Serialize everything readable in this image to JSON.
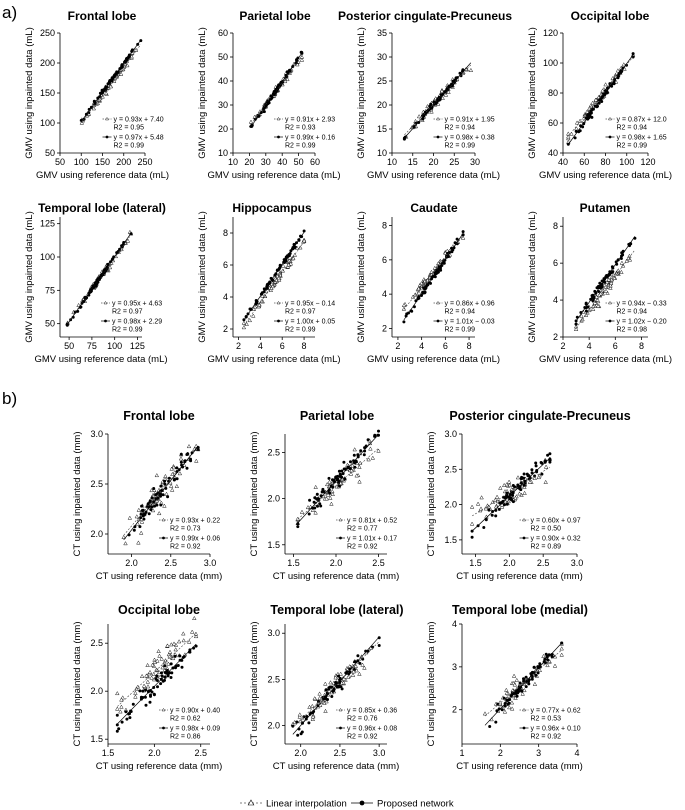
{
  "panel_labels": {
    "a": "a)",
    "b": "b)"
  },
  "legend": {
    "linear": "Linear interpolation",
    "proposed": "Proposed network"
  },
  "chart_data": [
    {
      "type": "scatter",
      "title": "Frontal lobe",
      "xlabel": "GMV using reference data (mL)",
      "ylabel": "GMV using inpainted data (mL)",
      "xlim": [
        50,
        250
      ],
      "ylim": [
        50,
        250
      ],
      "xticks": [
        "50",
        "100",
        "150",
        "200",
        "250"
      ],
      "yticks": [
        "50",
        "100",
        "150",
        "200",
        "250"
      ],
      "range": [
        100,
        240
      ],
      "fit_linear": {
        "slope": 0.93,
        "intercept": 7.4
      },
      "fit_proposed": {
        "slope": 0.97,
        "intercept": 5.48
      },
      "eq_linear": "y = 0.93x + 7.40",
      "r2_linear": "R2 = 0.95",
      "eq_proposed": "y = 0.97x + 5.48",
      "r2_proposed": "R2 = 0.99",
      "spread": 0.03
    },
    {
      "type": "scatter",
      "title": "Parietal lobe",
      "xlabel": "GMV using reference data (mL)",
      "ylabel": "GMV using inpainted data (mL)",
      "xlim": [
        10,
        60
      ],
      "ylim": [
        10,
        60
      ],
      "xticks": [
        "10",
        "20",
        "30",
        "40",
        "50",
        "60"
      ],
      "yticks": [
        "10",
        "20",
        "30",
        "40",
        "50",
        "60"
      ],
      "range": [
        21,
        52
      ],
      "fit_linear": {
        "slope": 0.91,
        "intercept": 2.93
      },
      "fit_proposed": {
        "slope": 0.99,
        "intercept": 0.16
      },
      "eq_linear": "y = 0.91x + 2.93",
      "r2_linear": "R2 = 0.93",
      "eq_proposed": "y = 0.99x + 0.16",
      "r2_proposed": "R2 = 0.99",
      "spread": 0.035
    },
    {
      "type": "scatter",
      "title": "Posterior cingulate-Precuneus",
      "xlabel": "GMV using reference data (mL)",
      "ylabel": "GMV using inpainted data (mL)",
      "xlim": [
        10,
        30
      ],
      "ylim": [
        10,
        35
      ],
      "xticks": [
        "10",
        "15",
        "20",
        "25",
        "30"
      ],
      "yticks": [
        "10",
        "15",
        "20",
        "25",
        "30",
        "35"
      ],
      "range": [
        13,
        29
      ],
      "fit_linear": {
        "slope": 0.91,
        "intercept": 1.95
      },
      "fit_proposed": {
        "slope": 0.98,
        "intercept": 0.38
      },
      "eq_linear": "y = 0.91x + 1.95",
      "r2_linear": "R2 = 0.94",
      "eq_proposed": "y = 0.98x + 0.38",
      "r2_proposed": "R2 = 0.99",
      "spread": 0.035
    },
    {
      "type": "scatter",
      "title": "Occipital lobe",
      "xlabel": "GMV using reference data (mL)",
      "ylabel": "GMV using inpainted data (mL)",
      "xlim": [
        40,
        120
      ],
      "ylim": [
        40,
        120
      ],
      "xticks": [
        "40",
        "60",
        "80",
        "100",
        "120"
      ],
      "yticks": [
        "40",
        "60",
        "80",
        "100",
        "120"
      ],
      "range": [
        45,
        106
      ],
      "fit_linear": {
        "slope": 0.87,
        "intercept": 12.0
      },
      "fit_proposed": {
        "slope": 0.98,
        "intercept": 1.65
      },
      "eq_linear": "y = 0.87x + 12.0",
      "r2_linear": "R2 = 0.94",
      "eq_proposed": "y = 0.98x + 1.65",
      "r2_proposed": "R2 = 0.99",
      "spread": 0.035
    },
    {
      "type": "scatter",
      "title": "Temporal lobe (lateral)",
      "xlabel": "GMV using reference data (mL)",
      "ylabel": "GMV using inpainted data (mL)",
      "xlim": [
        40,
        130
      ],
      "ylim": [
        40,
        130
      ],
      "xticks": [
        "50",
        "75",
        "100",
        "125"
      ],
      "yticks": [
        "50",
        "75",
        "100",
        "125"
      ],
      "range": [
        48,
        118
      ],
      "fit_linear": {
        "slope": 0.95,
        "intercept": 4.63
      },
      "fit_proposed": {
        "slope": 0.98,
        "intercept": 2.29
      },
      "eq_linear": "y = 0.95x + 4.63",
      "r2_linear": "R2 = 0.97",
      "eq_proposed": "y = 0.98x + 2.29",
      "r2_proposed": "R2 = 0.99",
      "spread": 0.03
    },
    {
      "type": "scatter",
      "title": "Hippocampus",
      "xlabel": "GMV using reference data (mL)",
      "ylabel": "GMV using inpainted data (mL)",
      "xlim": [
        1.5,
        9
      ],
      "ylim": [
        1.5,
        9
      ],
      "xticks": [
        "2",
        "4",
        "6",
        "8"
      ],
      "yticks": [
        "2",
        "4",
        "6",
        "8"
      ],
      "range": [
        2.5,
        8
      ],
      "fit_linear": {
        "slope": 0.95,
        "intercept": -0.14
      },
      "fit_proposed": {
        "slope": 1.0,
        "intercept": 0.05
      },
      "eq_linear": "y = 0.95x − 0.14",
      "r2_linear": "R2 = 0.97",
      "eq_proposed": "y = 1.00x + 0.05",
      "r2_proposed": "R2 = 0.99",
      "spread": 0.04
    },
    {
      "type": "scatter",
      "title": "Caudate",
      "xlabel": "GMV using reference data (mL)",
      "ylabel": "GMV using inpainted data (mL)",
      "xlim": [
        1.5,
        8.5
      ],
      "ylim": [
        1.5,
        8.5
      ],
      "xticks": [
        "2",
        "4",
        "6",
        "8"
      ],
      "yticks": [
        "2",
        "4",
        "6",
        "8"
      ],
      "range": [
        2.5,
        7.5
      ],
      "fit_linear": {
        "slope": 0.86,
        "intercept": 0.96
      },
      "fit_proposed": {
        "slope": 1.01,
        "intercept": -0.03
      },
      "eq_linear": "y = 0.86x + 0.96",
      "r2_linear": "R2 = 0.94",
      "eq_proposed": "y = 1.01x − 0.03",
      "r2_proposed": "R2 = 0.99",
      "spread": 0.05
    },
    {
      "type": "scatter",
      "title": "Putamen",
      "xlabel": "GMV using reference data (mL)",
      "ylabel": "GMV using inpainted data (mL)",
      "xlim": [
        2,
        8.5
      ],
      "ylim": [
        2,
        8.5
      ],
      "xticks": [
        "2",
        "4",
        "6",
        "8"
      ],
      "yticks": [
        "2",
        "4",
        "6",
        "8"
      ],
      "range": [
        3,
        7.5
      ],
      "fit_linear": {
        "slope": 0.94,
        "intercept": -0.33
      },
      "fit_proposed": {
        "slope": 1.02,
        "intercept": -0.2
      },
      "eq_linear": "y = 0.94x − 0.33",
      "r2_linear": "R2 = 0.94",
      "eq_proposed": "y = 1.02x − 0.20",
      "r2_proposed": "R2 = 0.98",
      "spread": 0.05
    },
    {
      "type": "scatter",
      "title": "Frontal lobe",
      "xlabel": "CT using reference data (mm)",
      "ylabel": "CT using inpainted data (mm)",
      "xlim": [
        1.7,
        3.0
      ],
      "ylim": [
        1.8,
        3.0
      ],
      "xticks": [
        "2.0",
        "2.5",
        "3.0"
      ],
      "yticks": [
        "2.0",
        "2.5",
        "3.0"
      ],
      "range": [
        1.9,
        2.85
      ],
      "fit_linear": {
        "slope": 0.93,
        "intercept": 0.22
      },
      "fit_proposed": {
        "slope": 0.99,
        "intercept": 0.06
      },
      "eq_linear": "y = 0.93x + 0.22",
      "r2_linear": "R2 = 0.73",
      "eq_proposed": "y = 0.99x + 0.06",
      "r2_proposed": "R2 = 0.92",
      "spread": 0.06
    },
    {
      "type": "scatter",
      "title": "Parietal lobe",
      "xlabel": "CT using reference data (mm)",
      "ylabel": "CT using inpainted data (mm)",
      "xlim": [
        1.4,
        2.6
      ],
      "ylim": [
        1.4,
        2.7
      ],
      "xticks": [
        "1.5",
        "2.0",
        "2.5"
      ],
      "yticks": [
        "1.5",
        "2.0",
        "2.5"
      ],
      "range": [
        1.55,
        2.5
      ],
      "fit_linear": {
        "slope": 0.81,
        "intercept": 0.52
      },
      "fit_proposed": {
        "slope": 1.01,
        "intercept": 0.17
      },
      "eq_linear": "y = 0.81x + 0.52",
      "r2_linear": "R2 = 0.77",
      "eq_proposed": "y = 1.01x + 0.17",
      "r2_proposed": "R2 = 0.92",
      "spread": 0.06
    },
    {
      "type": "scatter",
      "title": "Posterior cingulate-Precuneus",
      "xlabel": "CT using reference data (mm)",
      "ylabel": "CT using inpainted data (mm)",
      "xlim": [
        1.3,
        3.0
      ],
      "ylim": [
        1.3,
        3.0
      ],
      "xticks": [
        "1.5",
        "2.0",
        "2.5",
        "3.0"
      ],
      "yticks": [
        "1.5",
        "2.0",
        "2.5",
        "3.0"
      ],
      "range": [
        1.45,
        2.6
      ],
      "fit_linear": {
        "slope": 0.6,
        "intercept": 0.97
      },
      "fit_proposed": {
        "slope": 0.9,
        "intercept": 0.32
      },
      "eq_linear": "y = 0.60x + 0.97",
      "r2_linear": "R2 = 0.50",
      "eq_proposed": "y = 0.90x + 0.32",
      "r2_proposed": "R2 = 0.89",
      "spread": 0.08
    },
    {
      "type": "scatter",
      "title": "Occipital lobe",
      "xlabel": "CT using reference data (mm)",
      "ylabel": "CT using inpainted data (mm)",
      "xlim": [
        1.5,
        2.6
      ],
      "ylim": [
        1.45,
        2.7
      ],
      "xticks": [
        "1.5",
        "2.0",
        "2.5"
      ],
      "yticks": [
        "1.5",
        "2.0",
        "2.5"
      ],
      "range": [
        1.6,
        2.45
      ],
      "fit_linear": {
        "slope": 0.9,
        "intercept": 0.4
      },
      "fit_proposed": {
        "slope": 0.98,
        "intercept": 0.09
      },
      "eq_linear": "y = 0.90x + 0.40",
      "r2_linear": "R2 = 0.62",
      "eq_proposed": "y = 0.98x + 0.09",
      "r2_proposed": "R2 = 0.86",
      "spread": 0.07
    },
    {
      "type": "scatter",
      "title": "Temporal lobe (lateral)",
      "xlabel": "CT using reference data (mm)",
      "ylabel": "CT using inpainted data (mm)",
      "xlim": [
        1.8,
        3.1
      ],
      "ylim": [
        1.8,
        3.1
      ],
      "xticks": [
        "2.0",
        "2.5",
        "3.0"
      ],
      "yticks": [
        "2.0",
        "2.5",
        "3.0"
      ],
      "range": [
        1.9,
        3.0
      ],
      "fit_linear": {
        "slope": 0.85,
        "intercept": 0.36
      },
      "fit_proposed": {
        "slope": 0.96,
        "intercept": 0.08
      },
      "eq_linear": "y = 0.85x + 0.36",
      "r2_linear": "R2 = 0.76",
      "eq_proposed": "y = 0.96x + 0.08",
      "r2_proposed": "R2 = 0.92",
      "spread": 0.05
    },
    {
      "type": "scatter",
      "title": "Temporal lobe (medial)",
      "xlabel": "CT using reference data (mm)",
      "ylabel": "CT using inpainted data (mm)",
      "xlim": [
        1,
        4
      ],
      "ylim": [
        1.2,
        4
      ],
      "xticks": [
        "1",
        "2",
        "3",
        "4"
      ],
      "yticks": [
        "2",
        "3",
        "4"
      ],
      "range": [
        1.6,
        3.6
      ],
      "fit_linear": {
        "slope": 0.77,
        "intercept": 0.62
      },
      "fit_proposed": {
        "slope": 0.96,
        "intercept": 0.1
      },
      "eq_linear": "y = 0.77x + 0.62",
      "r2_linear": "R2 = 0.53",
      "eq_proposed": "y = 0.96x + 0.10",
      "r2_proposed": "R2 = 0.92",
      "spread": 0.09
    }
  ]
}
